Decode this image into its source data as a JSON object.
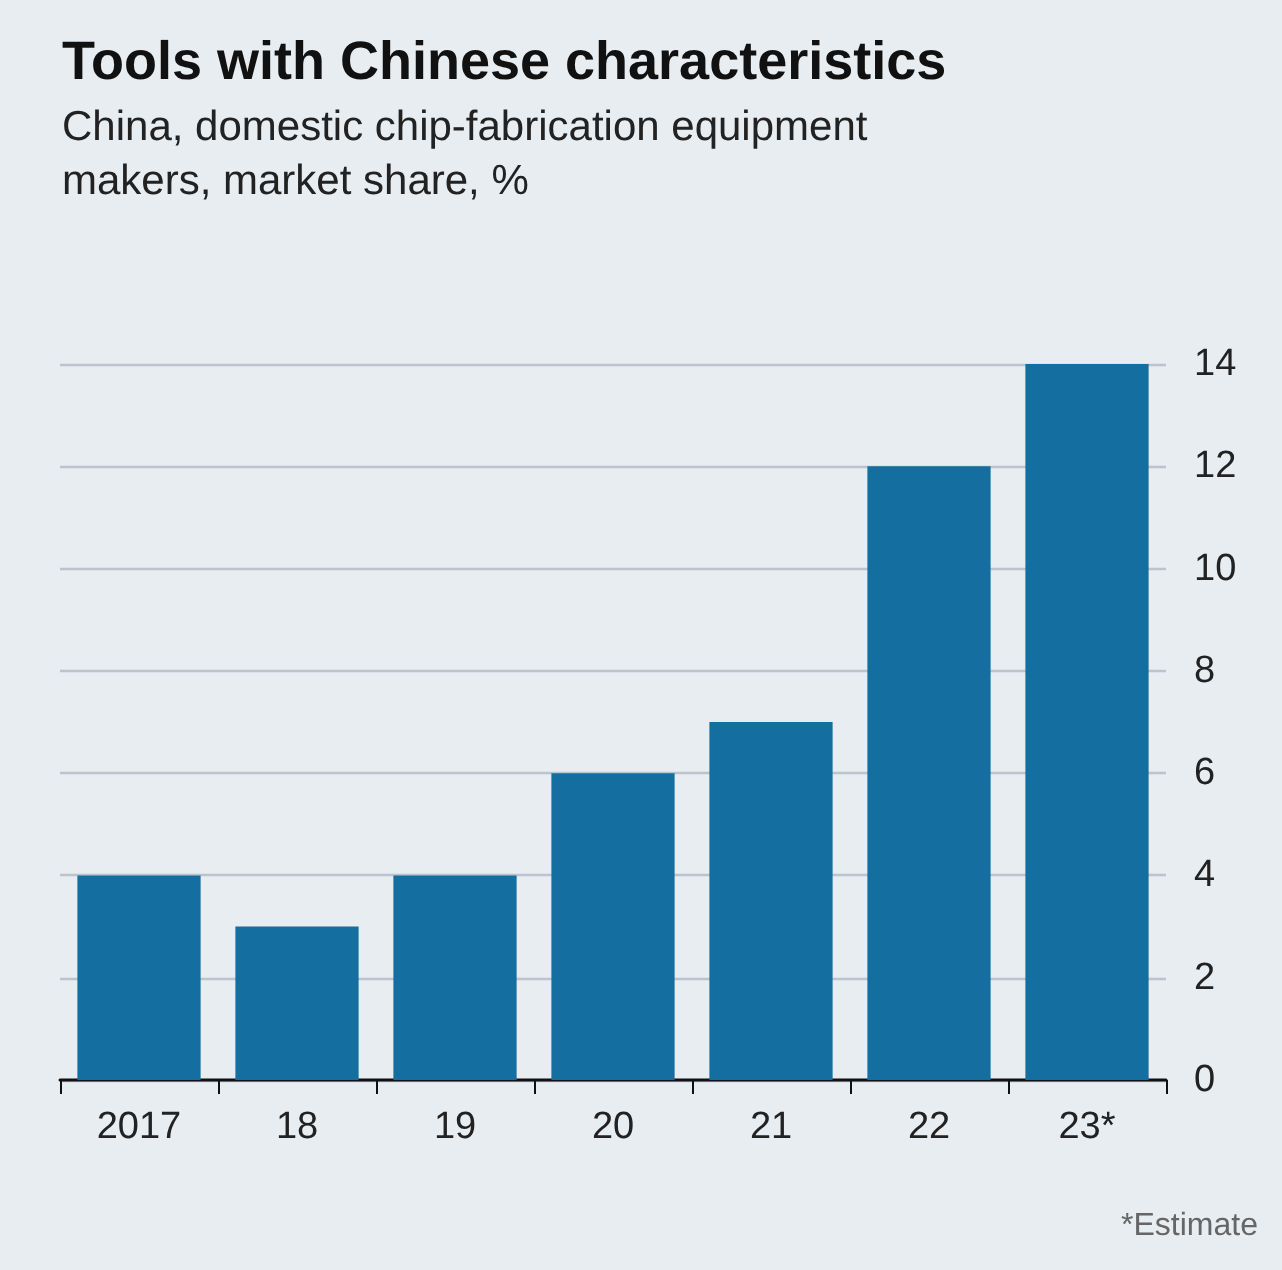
{
  "chart_data": {
    "type": "bar",
    "title": "Tools with Chinese characteristics",
    "subtitle": "China, domestic chip-fabrication equipment makers, market share, %",
    "categories": [
      "2017",
      "18",
      "19",
      "20",
      "21",
      "22",
      "23*"
    ],
    "values": [
      4,
      3,
      4,
      6,
      7,
      12,
      14
    ],
    "color": "#156ea0",
    "ylim": [
      0,
      14
    ],
    "yticks": [
      0,
      2,
      4,
      6,
      8,
      10,
      12,
      14
    ],
    "grid": "y",
    "annotations": [
      "*Estimate"
    ]
  }
}
